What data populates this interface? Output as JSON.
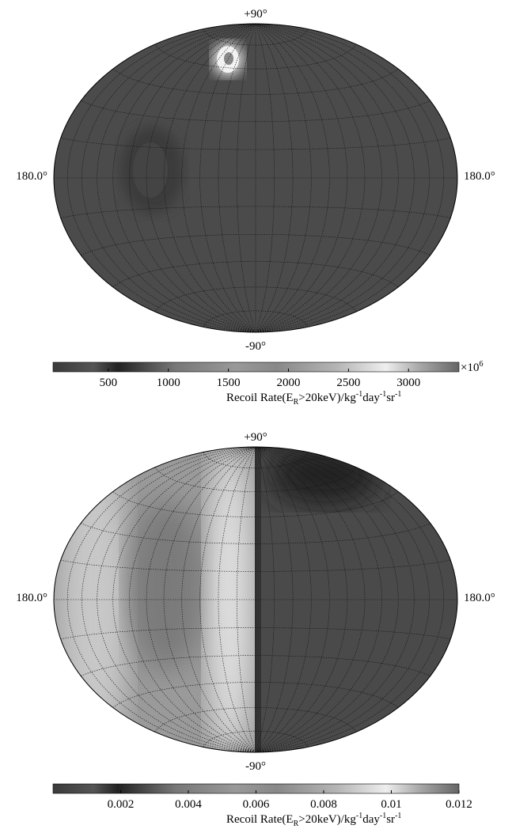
{
  "chart_data": [
    {
      "type": "skymap",
      "top_label": "+90°",
      "bottom_label": "-90°",
      "left_label": "180.0°",
      "right_label": "180.0°",
      "clim": [
        40,
        3420
      ],
      "cticks": [
        500,
        1000,
        1500,
        2000,
        2500,
        3000
      ],
      "multiplier": [
        "×10",
        "6"
      ],
      "colorbar_label": [
        "Recoil Rate(E",
        "R",
        ">20keV)/kg",
        "-1",
        "day",
        "-1",
        "sr",
        "-1"
      ]
    },
    {
      "type": "skymap",
      "top_label": "+90°",
      "bottom_label": "-90°",
      "left_label": "180.0°",
      "right_label": "180.0°",
      "clim": [
        0,
        0.012
      ],
      "cticks": [
        0.002,
        0.004,
        0.006,
        0.008,
        0.01,
        0.012
      ],
      "colorbar_label": [
        "Recoil Rate(E",
        "R",
        ">20keV)/kg",
        "-1",
        "day",
        "-1",
        "sr",
        "-1"
      ]
    }
  ]
}
